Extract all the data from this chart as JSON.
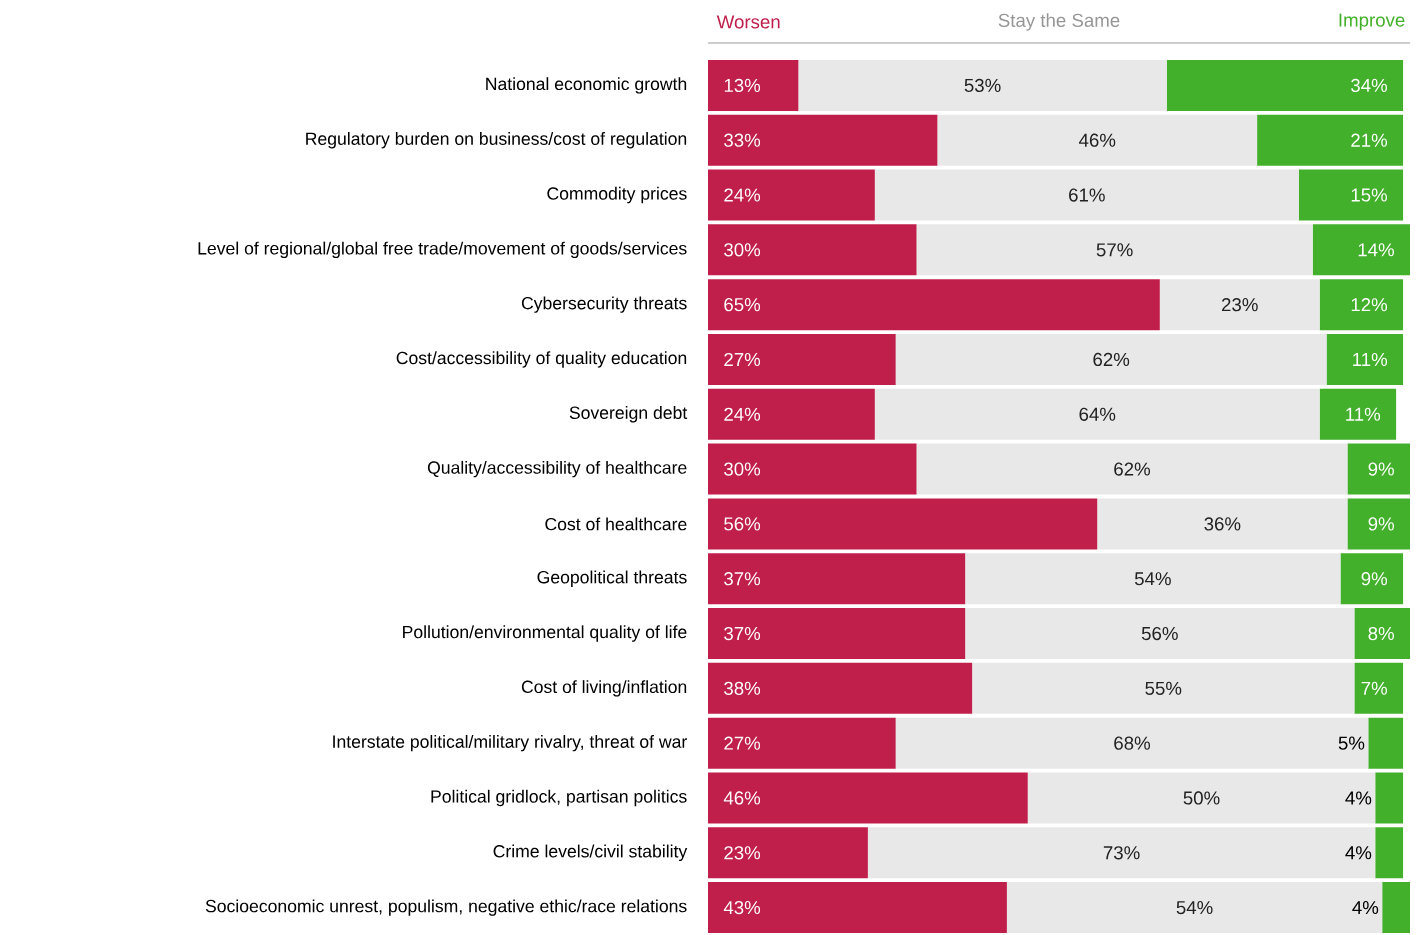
{
  "chart_data": {
    "type": "bar",
    "orientation": "horizontal",
    "stacked": true,
    "legend": "top",
    "tick_labels": "y",
    "categories": [
      "National economic growth",
      "Regulatory burden on business/cost of regulation",
      "Commodity prices",
      "Level of regional/global free trade/movement of goods/services",
      "Cybersecurity threats",
      "Cost/accessibility of quality education",
      "Sovereign debt",
      "Quality/accessibility of healthcare",
      "Cost of healthcare",
      "Geopolitical threats",
      "Pollution/environmental quality of life",
      "Cost of living/inflation",
      "Interstate political/military rivalry, threat of war",
      "Political gridlock, partisan politics",
      "Crime levels/civil stability",
      "Socioeconomic unrest, populism, negative ethic/race relations"
    ],
    "series": [
      {
        "name": "Worsen",
        "color": "#c01f4b",
        "values": [
          13,
          33,
          24,
          30,
          65,
          27,
          24,
          30,
          56,
          37,
          37,
          38,
          27,
          46,
          23,
          43
        ],
        "value_labels": [
          "13%",
          "33%",
          "24%",
          "30%",
          "65%",
          "27%",
          "24%",
          "30%",
          "56%",
          "37%",
          "37%",
          "38%",
          "27%",
          "46%",
          "23%",
          "43%"
        ]
      },
      {
        "name": "Stay the Same",
        "color": "#e8e8e8",
        "values": [
          53,
          46,
          61,
          57,
          23,
          62,
          64,
          62,
          36,
          54,
          56,
          55,
          68,
          50,
          73,
          54
        ],
        "value_labels": [
          "53%",
          "46%",
          "61%",
          "57%",
          "23%",
          "62%",
          "64%",
          "62%",
          "36%",
          "54%",
          "56%",
          "55%",
          "68%",
          "50%",
          "73%",
          "54%"
        ]
      },
      {
        "name": "Improve",
        "color": "#42b02a",
        "values": [
          34,
          21,
          15,
          14,
          12,
          11,
          11,
          9,
          9,
          9,
          8,
          7,
          5,
          4,
          4,
          4
        ],
        "value_labels": [
          "34%",
          "21%",
          "15%",
          "14%",
          "12%",
          "11%",
          "11%",
          "9%",
          "9%",
          "9%",
          "8%",
          "7%",
          "5%",
          "4%",
          "4%",
          "4%"
        ]
      }
    ]
  }
}
